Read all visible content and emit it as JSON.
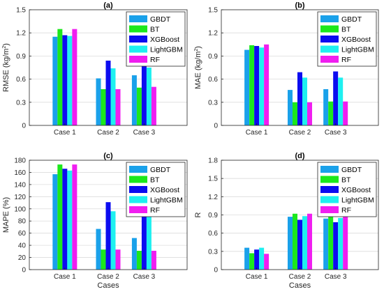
{
  "chart_data": [
    {
      "type": "bar",
      "title": "(a)",
      "xlabel": "",
      "ylabel": "RMSE (kg/m²)",
      "ylabel_base": "RMSE (kg/m",
      "ylabel_sup": "2",
      "ylabel_end": ")",
      "ylim": [
        0,
        1.5
      ],
      "yticks": [
        "0",
        "0.3",
        "0.6",
        "0.9",
        "1.2",
        "1.5"
      ],
      "categories": [
        "Case 1",
        "Case 2",
        "Case 3"
      ],
      "grid": true,
      "legend": "top-right",
      "series": [
        {
          "name": "GBDT",
          "values": [
            1.15,
            0.61,
            0.65
          ]
        },
        {
          "name": "BT",
          "values": [
            1.25,
            0.47,
            0.49
          ]
        },
        {
          "name": "XGBoost",
          "values": [
            1.17,
            0.84,
            0.85
          ]
        },
        {
          "name": "LightGBM",
          "values": [
            1.16,
            0.74,
            0.75
          ]
        },
        {
          "name": "RF",
          "values": [
            1.25,
            0.47,
            0.5
          ]
        }
      ]
    },
    {
      "type": "bar",
      "title": "(b)",
      "xlabel": "",
      "ylabel": "MAE (kg/m²)",
      "ylabel_base": "MAE (kg/m",
      "ylabel_sup": "2",
      "ylabel_end": ")",
      "ylim": [
        0,
        1.5
      ],
      "yticks": [
        "0",
        "0.3",
        "0.6",
        "0.9",
        "1.2",
        "1.5"
      ],
      "categories": [
        "Case 1",
        "Case 2",
        "Case 3"
      ],
      "grid": true,
      "legend": "top-right",
      "series": [
        {
          "name": "GBDT",
          "values": [
            0.98,
            0.46,
            0.47
          ]
        },
        {
          "name": "BT",
          "values": [
            1.04,
            0.3,
            0.31
          ]
        },
        {
          "name": "XGBoost",
          "values": [
            1.03,
            0.69,
            0.7
          ]
        },
        {
          "name": "LightGBM",
          "values": [
            1.01,
            0.62,
            0.62
          ]
        },
        {
          "name": "RF",
          "values": [
            1.05,
            0.3,
            0.31
          ]
        }
      ]
    },
    {
      "type": "bar",
      "title": "(c)",
      "xlabel": "Cases",
      "ylabel": "MAPE (%)",
      "ylabel_base": "MAPE (%)",
      "ylabel_sup": "",
      "ylabel_end": "",
      "ylim": [
        0,
        180
      ],
      "yticks": [
        "0",
        "20",
        "40",
        "60",
        "80",
        "100",
        "120",
        "140",
        "160",
        "180"
      ],
      "categories": [
        "Case 1",
        "Case 2",
        "Case 3"
      ],
      "grid": true,
      "legend": "top-right",
      "series": [
        {
          "name": "GBDT",
          "values": [
            157,
            67,
            52
          ]
        },
        {
          "name": "BT",
          "values": [
            173,
            33,
            31
          ]
        },
        {
          "name": "XGBoost",
          "values": [
            166,
            111,
            94
          ]
        },
        {
          "name": "LightGBM",
          "values": [
            163,
            96,
            87
          ]
        },
        {
          "name": "RF",
          "values": [
            173,
            33,
            31
          ]
        }
      ]
    },
    {
      "type": "bar",
      "title": "(d)",
      "xlabel": "Cases",
      "ylabel": "R",
      "ylabel_base": "R",
      "ylabel_sup": "",
      "ylabel_end": "",
      "ylim": [
        0,
        1.8
      ],
      "yticks": [
        "0",
        "0.3",
        "0.6",
        "0.9",
        "1.2",
        "1.5",
        "1.8"
      ],
      "categories": [
        "Case 1",
        "Case 2",
        "Case 3"
      ],
      "grid": true,
      "legend": "top-right",
      "series": [
        {
          "name": "GBDT",
          "values": [
            0.36,
            0.87,
            0.84
          ]
        },
        {
          "name": "BT",
          "values": [
            0.27,
            0.92,
            0.9
          ]
        },
        {
          "name": "XGBoost",
          "values": [
            0.33,
            0.82,
            0.78
          ]
        },
        {
          "name": "LightGBM",
          "values": [
            0.36,
            0.88,
            0.85
          ]
        },
        {
          "name": "RF",
          "values": [
            0.26,
            0.92,
            0.9
          ]
        }
      ]
    }
  ],
  "colors": {
    "GBDT": "#1aa1ea",
    "BT": "#1ce81c",
    "XGBoost": "#0c0cf0",
    "LightGBM": "#1ef0f0",
    "RF": "#f01ef0"
  }
}
